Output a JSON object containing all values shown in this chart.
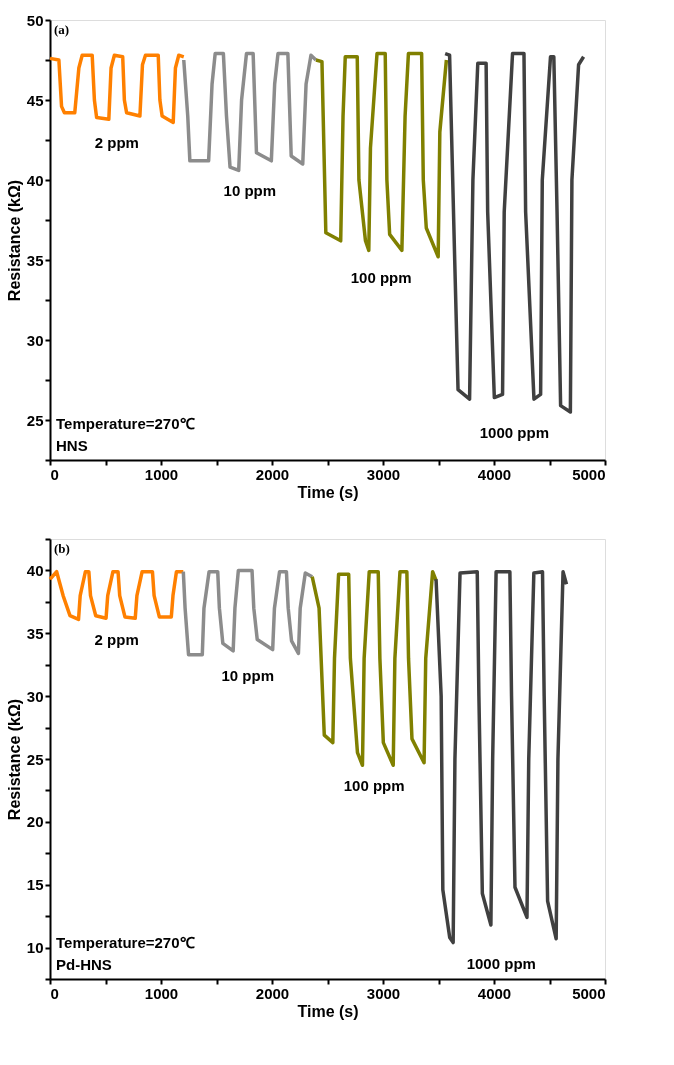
{
  "chart_data": [
    {
      "type": "line",
      "xlabel": "Time (s)",
      "ylabel": "Resistance (kΩ)",
      "xlim": [
        0,
        5000
      ],
      "ylim": [
        22.5,
        50
      ],
      "xticks": [
        0,
        {
          "value": 500,
          "label": null
        },
        1000,
        {
          "value": 1500,
          "label": null
        },
        2000,
        {
          "value": 2500,
          "label": null
        },
        3000,
        {
          "value": 3500,
          "label": null
        },
        4000,
        {
          "value": 4500,
          "label": null
        },
        5000
      ],
      "yticks": [
        {
          "value": 22.5,
          "label": null
        },
        25,
        {
          "value": 27.5,
          "label": null
        },
        30,
        {
          "value": 32.5,
          "label": null
        },
        35,
        {
          "value": 37.5,
          "label": null
        },
        40,
        {
          "value": 42.5,
          "label": null
        },
        45,
        {
          "value": 47.5,
          "label": null
        },
        50
      ],
      "grid": false,
      "series": [
        {
          "color": "#ff8000",
          "x": [
            0,
            80,
            104,
            130,
            223,
            260,
            290,
            380,
            400,
            420,
            530,
            550,
            580,
            655,
            670,
            690,
            810,
            833,
            860,
            975,
            990,
            1010,
            1110,
            1130,
            1160,
            1205
          ],
          "values": [
            47.6,
            47.5,
            44.6,
            44.2,
            44.2,
            47.0,
            47.8,
            47.8,
            45.0,
            43.9,
            43.8,
            47.0,
            47.8,
            47.7,
            45.0,
            44.2,
            44.0,
            47.2,
            47.8,
            47.8,
            45.0,
            44.0,
            43.6,
            47.0,
            47.8,
            47.7
          ]
        },
        {
          "color": "#8c8c8c",
          "x": [
            1205,
            1241,
            1260,
            1429,
            1460,
            1488,
            1562,
            1590,
            1622,
            1700,
            1726,
            1770,
            1830,
            1860,
            1994,
            2024,
            2054,
            2143,
            2173,
            2277,
            2307,
            2351,
            2396
          ],
          "values": [
            47.5,
            44.0,
            41.2,
            41.2,
            46.0,
            47.9,
            47.9,
            44.0,
            40.8,
            40.6,
            45.0,
            47.9,
            47.9,
            41.7,
            41.2,
            46.0,
            47.9,
            47.9,
            41.5,
            41.0,
            46.0,
            47.8,
            47.5
          ]
        },
        {
          "color": "#808000",
          "x": [
            2396,
            2450,
            2485,
            2619,
            2640,
            2660,
            2768,
            2783,
            2842,
            2872,
            2887,
            2946,
            3020,
            3035,
            3060,
            3170,
            3199,
            3229,
            3348,
            3363,
            3390,
            3497,
            3512,
            3571
          ],
          "values": [
            47.5,
            47.4,
            36.7,
            36.2,
            44.0,
            47.7,
            47.7,
            40.0,
            36.2,
            35.6,
            42.0,
            47.9,
            47.9,
            40.0,
            36.6,
            35.6,
            44.0,
            47.9,
            47.9,
            40.0,
            37.0,
            35.2,
            43.0,
            47.5
          ]
        },
        {
          "color": "#404040",
          "x": [
            3560,
            3600,
            3646,
            3676,
            3780,
            3810,
            3854,
            3929,
            3943,
            4003,
            4077,
            4092,
            4167,
            4270,
            4285,
            4360,
            4420,
            4435,
            4509,
            4539,
            4568,
            4600,
            4688,
            4702,
            4762,
            4807
          ],
          "values": [
            47.9,
            47.8,
            35.0,
            26.9,
            26.3,
            40.0,
            47.3,
            47.3,
            38.0,
            26.4,
            26.6,
            38.0,
            47.9,
            47.9,
            38.0,
            26.3,
            26.6,
            40.0,
            47.7,
            47.7,
            38.0,
            25.9,
            25.5,
            40.0,
            47.2,
            47.7
          ]
        }
      ],
      "annotations": [
        "(a)",
        "Temperature=270℃",
        "HNS",
        "2 ppm",
        "10 ppm",
        "100 ppm",
        "1000 ppm"
      ]
    },
    {
      "type": "line",
      "xlabel": "Time (s)",
      "ylabel": "Resistance (kΩ)",
      "xlim": [
        0,
        5000
      ],
      "ylim": [
        7.5,
        42.5
      ],
      "xticks": [
        0,
        {
          "value": 500,
          "label": null
        },
        1000,
        {
          "value": 1500,
          "label": null
        },
        2000,
        {
          "value": 2500,
          "label": null
        },
        3000,
        {
          "value": 3500,
          "label": null
        },
        4000,
        {
          "value": 4500,
          "label": null
        },
        5000
      ],
      "yticks": [
        {
          "value": 7.5,
          "label": null
        },
        10,
        {
          "value": 12.5,
          "label": null
        },
        15,
        {
          "value": 17.5,
          "label": null
        },
        20,
        {
          "value": 22.5,
          "label": null
        },
        25,
        {
          "value": 27.5,
          "label": null
        },
        30,
        {
          "value": 32.5,
          "label": null
        },
        35,
        {
          "value": 37.5,
          "label": null
        },
        40,
        {
          "value": 42.5,
          "label": null
        }
      ],
      "grid": false,
      "series": [
        {
          "color": "#ff8000",
          "x": [
            0,
            60,
            118,
            180,
            257,
            272,
            319,
            350,
            365,
            412,
            505,
            520,
            567,
            613,
            628,
            675,
            768,
            783,
            830,
            923,
            938,
            985,
            1093,
            1108,
            1139,
            1201
          ],
          "values": [
            39.3,
            39.9,
            38.0,
            36.4,
            36.1,
            38.0,
            39.9,
            39.9,
            38.0,
            36.4,
            36.2,
            38.0,
            39.9,
            39.9,
            38.0,
            36.3,
            36.2,
            38.0,
            39.9,
            39.9,
            38.0,
            36.3,
            36.3,
            38.0,
            39.9,
            39.9
          ]
        },
        {
          "color": "#8c8c8c",
          "x": [
            1201,
            1217,
            1248,
            1372,
            1387,
            1433,
            1511,
            1526,
            1557,
            1650,
            1666,
            1697,
            1820,
            1836,
            1867,
            2006,
            2022,
            2068,
            2130,
            2146,
            2176,
            2238,
            2254,
            2300,
            2362
          ],
          "values": [
            39.9,
            37.0,
            33.3,
            33.3,
            37.0,
            39.9,
            39.9,
            37.0,
            34.2,
            33.6,
            37.0,
            40.0,
            40.0,
            37.0,
            34.5,
            33.7,
            37.0,
            39.9,
            39.9,
            37.0,
            34.4,
            33.4,
            37.0,
            39.8,
            39.5
          ]
        },
        {
          "color": "#808000",
          "x": [
            2362,
            2424,
            2471,
            2548,
            2563,
            2600,
            2691,
            2706,
            2770,
            2815,
            2830,
            2876,
            2957,
            2972,
            3003,
            3092,
            3107,
            3153,
            3215,
            3230,
            3261,
            3370,
            3385,
            3447,
            3478
          ],
          "values": [
            39.5,
            37.0,
            26.9,
            26.3,
            33.0,
            39.7,
            39.7,
            33.0,
            25.5,
            24.5,
            33.0,
            39.9,
            39.9,
            33.0,
            26.3,
            24.5,
            33.0,
            39.9,
            39.9,
            33.0,
            26.6,
            24.7,
            33.0,
            39.9,
            39.2
          ]
        },
        {
          "color": "#404040",
          "x": [
            3478,
            3524,
            3539,
            3601,
            3632,
            3648,
            3694,
            3849,
            3864,
            3895,
            3972,
            3988,
            4019,
            4143,
            4158,
            4189,
            4297,
            4313,
            4359,
            4437,
            4452,
            4483,
            4560,
            4576,
            4622,
            4653
          ],
          "values": [
            39.3,
            30.0,
            14.6,
            10.8,
            10.4,
            25.0,
            39.8,
            39.9,
            30.0,
            14.3,
            11.8,
            25.0,
            39.9,
            39.9,
            30.0,
            14.8,
            12.4,
            25.0,
            39.8,
            39.9,
            30.0,
            13.7,
            10.7,
            25.0,
            39.9,
            38.9
          ]
        }
      ],
      "annotations": [
        "(b)",
        "Temperature=270℃",
        "Pd-HNS",
        "2 ppm",
        "10 ppm",
        "100 ppm",
        "1000 ppm"
      ]
    }
  ]
}
